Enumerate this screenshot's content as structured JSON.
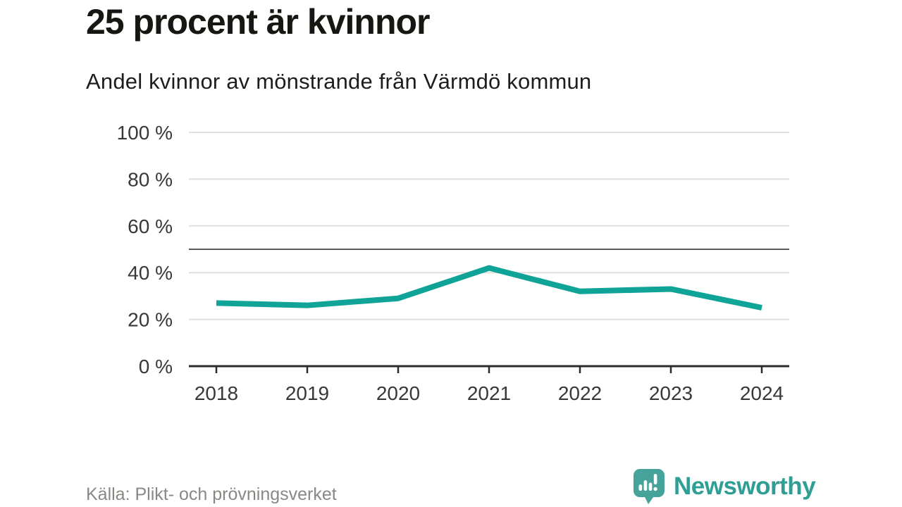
{
  "header": {
    "title": "25 procent är kvinnor",
    "subtitle": "Andel kvinnor av mönstrande från Värmdö kommun"
  },
  "chart_data": {
    "type": "line",
    "x": [
      "2018",
      "2019",
      "2020",
      "2021",
      "2022",
      "2023",
      "2024"
    ],
    "series": [
      {
        "name": "Andel kvinnor av mönstrande",
        "values": [
          27,
          26,
          29,
          42,
          32,
          33,
          25
        ]
      }
    ],
    "title": "25 procent är kvinnor",
    "subtitle": "Andel kvinnor av mönstrande från Värmdö kommun",
    "xlabel": "",
    "ylabel": "",
    "ylim": [
      0,
      100
    ],
    "y_ticks": [
      0,
      20,
      40,
      60,
      80,
      100
    ],
    "y_tick_labels": [
      "0 %",
      "20 %",
      "40 %",
      "60 %",
      "80 %",
      "100 %"
    ],
    "reference_line": 50,
    "grid": true,
    "legend_position": "none",
    "line_color": "#10a397",
    "gridline_color": "#e1dfdd",
    "axis_color": "#2b2b2b",
    "reference_line_color": "#5a5a5a",
    "tick_label_color": "#383838"
  },
  "footer": {
    "source": "Källa: Plikt- och prövningsverket",
    "brand_name": "Newsworthy",
    "brand_icon": "newsworthy-chart-speech-bubble-icon",
    "brand_text_color": "#2f9e94",
    "brand_icon_color": "#46a39a"
  }
}
